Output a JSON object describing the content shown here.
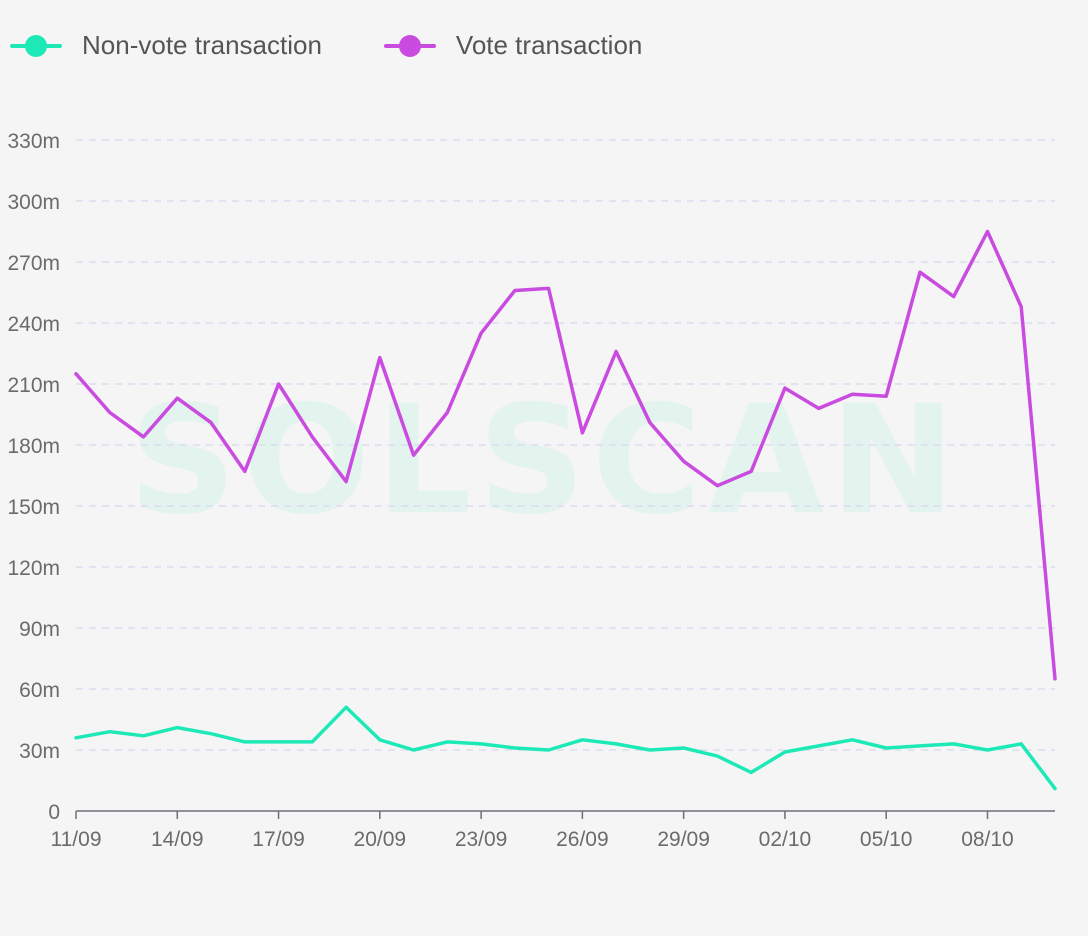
{
  "legend": {
    "items": [
      {
        "label": "Non-vote transaction",
        "color": "#1de9b6"
      },
      {
        "label": "Vote transaction",
        "color": "#c94be0"
      }
    ]
  },
  "watermark": "SOLSCAN",
  "chart_data": {
    "type": "line",
    "title": "",
    "xlabel": "",
    "ylabel": "",
    "ylim": [
      0,
      330000000
    ],
    "yticks": [
      "0",
      "30m",
      "60m",
      "90m",
      "120m",
      "150m",
      "180m",
      "210m",
      "240m",
      "270m",
      "300m",
      "330m"
    ],
    "ytick_values": [
      0,
      30000000,
      60000000,
      90000000,
      120000000,
      150000000,
      180000000,
      210000000,
      240000000,
      270000000,
      300000000,
      330000000
    ],
    "x": [
      "11/09",
      "12/09",
      "13/09",
      "14/09",
      "15/09",
      "16/09",
      "17/09",
      "18/09",
      "19/09",
      "20/09",
      "21/09",
      "22/09",
      "23/09",
      "24/09",
      "25/09",
      "26/09",
      "27/09",
      "28/09",
      "29/09",
      "30/09",
      "01/10",
      "02/10",
      "03/10",
      "04/10",
      "05/10",
      "06/10",
      "07/10",
      "08/10",
      "09/10",
      "10/10"
    ],
    "xtick_labels": [
      "11/09",
      "14/09",
      "17/09",
      "20/09",
      "23/09",
      "26/09",
      "29/09",
      "02/10",
      "05/10",
      "08/10"
    ],
    "legend_position": "top-left",
    "grid": true,
    "series": [
      {
        "name": "Non-vote transaction",
        "color": "#1de9b6",
        "values": [
          36000000,
          39000000,
          37000000,
          41000000,
          38000000,
          34000000,
          34000000,
          34000000,
          51000000,
          35000000,
          30000000,
          34000000,
          33000000,
          31000000,
          30000000,
          35000000,
          33000000,
          30000000,
          31000000,
          27000000,
          19000000,
          29000000,
          32000000,
          35000000,
          31000000,
          32000000,
          33000000,
          30000000,
          33000000,
          11000000
        ]
      },
      {
        "name": "Vote transaction",
        "color": "#c94be0",
        "values": [
          215000000,
          196000000,
          184000000,
          203000000,
          191000000,
          167000000,
          210000000,
          184000000,
          162000000,
          223000000,
          175000000,
          196000000,
          235000000,
          256000000,
          257000000,
          186000000,
          226000000,
          191000000,
          172000000,
          160000000,
          167000000,
          208000000,
          198000000,
          205000000,
          204000000,
          265000000,
          253000000,
          285000000,
          248000000,
          65000000
        ]
      }
    ]
  }
}
